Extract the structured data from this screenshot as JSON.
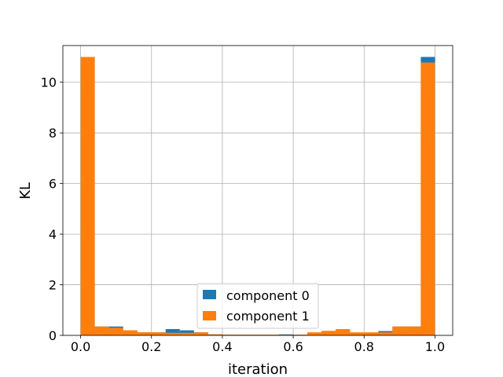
{
  "chart_data": {
    "type": "bar",
    "title": "",
    "xlabel": "iteration",
    "ylabel": "KL",
    "xlim": [
      -0.05,
      1.05
    ],
    "ylim": [
      0,
      11.45
    ],
    "grid": true,
    "legend_position": "bottom-center",
    "x_ticks": [
      0.0,
      0.2,
      0.4,
      0.6,
      0.8,
      1.0
    ],
    "x_tick_labels": [
      "0.0",
      "0.2",
      "0.4",
      "0.6",
      "0.8",
      "1.0"
    ],
    "y_ticks": [
      0,
      2,
      4,
      6,
      8,
      10
    ],
    "y_tick_labels": [
      "0",
      "2",
      "4",
      "6",
      "8",
      "10"
    ],
    "bin_edges": [
      0.0,
      0.04,
      0.08,
      0.12,
      0.16,
      0.2,
      0.24,
      0.28,
      0.32,
      0.36,
      0.4,
      0.44,
      0.48,
      0.52,
      0.56,
      0.6,
      0.64,
      0.68,
      0.72,
      0.76,
      0.8,
      0.84,
      0.88,
      0.92,
      0.96,
      1.0
    ],
    "series": [
      {
        "name": "component 0",
        "color": "#1f77b4",
        "values": [
          11.0,
          0.35,
          0.35,
          0.2,
          0.12,
          0.12,
          0.25,
          0.2,
          0.12,
          0.04,
          0.03,
          0.03,
          0.03,
          0.03,
          0.04,
          0.03,
          0.08,
          0.12,
          0.2,
          0.1,
          0.1,
          0.17,
          0.35,
          0.35,
          11.0
        ]
      },
      {
        "name": "component 1",
        "color": "#ff7f0e",
        "values": [
          11.0,
          0.35,
          0.3,
          0.2,
          0.12,
          0.12,
          0.1,
          0.1,
          0.12,
          0.04,
          0.03,
          0.03,
          0.03,
          0.03,
          0.02,
          0.03,
          0.12,
          0.18,
          0.25,
          0.12,
          0.12,
          0.12,
          0.35,
          0.35,
          10.78
        ]
      }
    ]
  }
}
